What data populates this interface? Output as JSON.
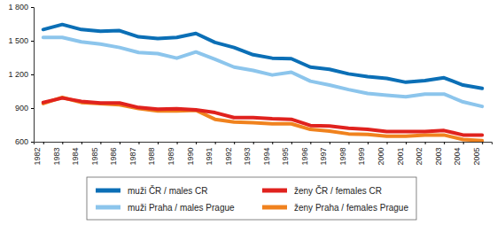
{
  "chart_data": {
    "type": "line",
    "categories": [
      "1982",
      "1983",
      "1984",
      "1985",
      "1986",
      "1987",
      "1988",
      "1989",
      "1990",
      "1991",
      "1992",
      "1993",
      "1994",
      "1995",
      "1996",
      "1997",
      "1998",
      "1999",
      "2000",
      "2001",
      "2002",
      "2003",
      "2004",
      "2005"
    ],
    "series": [
      {
        "name": "muži ČR / males CR",
        "color": "#0b6fb6",
        "values": [
          1600,
          1645,
          1600,
          1585,
          1590,
          1535,
          1520,
          1530,
          1565,
          1485,
          1440,
          1375,
          1345,
          1340,
          1265,
          1245,
          1205,
          1180,
          1165,
          1130,
          1145,
          1170,
          1105,
          1075
        ]
      },
      {
        "name": "muži Praha / males Prague",
        "color": "#8cc5ec",
        "values": [
          1530,
          1530,
          1490,
          1470,
          1440,
          1395,
          1385,
          1345,
          1400,
          1335,
          1265,
          1235,
          1195,
          1220,
          1140,
          1105,
          1065,
          1030,
          1015,
          1000,
          1025,
          1025,
          955,
          915
        ]
      },
      {
        "name": "ženy ČR / females CR",
        "color": "#e0221e",
        "values": [
          950,
          990,
          960,
          945,
          945,
          905,
          890,
          895,
          885,
          860,
          815,
          815,
          805,
          800,
          745,
          740,
          720,
          710,
          690,
          690,
          690,
          700,
          660,
          660
        ]
      },
      {
        "name": "ženy Praha / females Prague",
        "color": "#f0821e",
        "values": [
          940,
          995,
          950,
          940,
          930,
          895,
          875,
          875,
          880,
          800,
          775,
          770,
          760,
          760,
          710,
          695,
          670,
          665,
          650,
          650,
          660,
          660,
          620,
          610
        ]
      }
    ],
    "ylim": [
      600,
      1800
    ],
    "yticks": [
      {
        "value": 600,
        "label": "600"
      },
      {
        "value": 900,
        "label": "900"
      },
      {
        "value": 1200,
        "label": "1 200"
      },
      {
        "value": 1500,
        "label": "1 500"
      },
      {
        "value": 1800,
        "label": "1 800"
      }
    ],
    "grid": false,
    "legend": "bottom"
  }
}
